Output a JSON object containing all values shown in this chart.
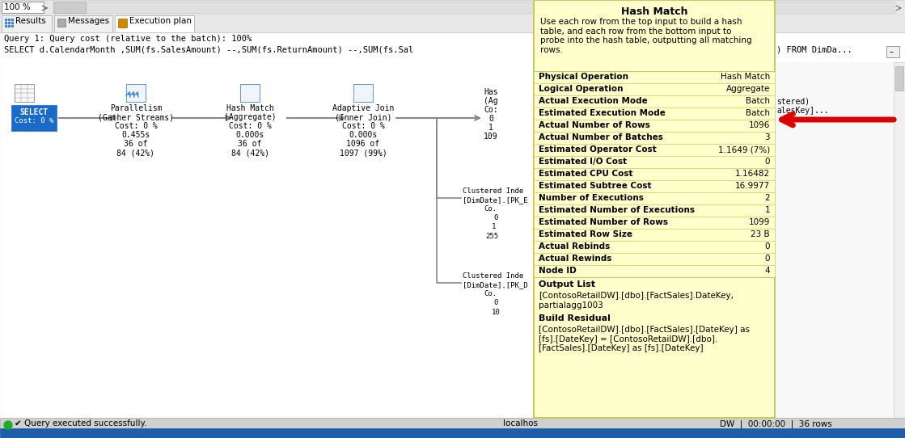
{
  "bg_color": "#f0f0f0",
  "tooltip_bg": "#ffffcc",
  "tooltip_border": "#c8c864",
  "tooltip_title": "Hash Match",
  "tooltip_desc": "Use each row from the top input to build a hash\ntable, and each row from the bottom input to\nprobe into the hash table, outputting all matching\nrows.",
  "table_rows": [
    [
      "Physical Operation",
      "Hash Match"
    ],
    [
      "Logical Operation",
      "Aggregate"
    ],
    [
      "Actual Execution Mode",
      "Batch"
    ],
    [
      "Estimated Execution Mode",
      "Batch"
    ],
    [
      "Actual Number of Rows",
      "1096"
    ],
    [
      "Actual Number of Batches",
      "3"
    ],
    [
      "Estimated Operator Cost",
      "1.1649 (7%)"
    ],
    [
      "Estimated I/O Cost",
      "0"
    ],
    [
      "Estimated CPU Cost",
      "1.16482"
    ],
    [
      "Estimated Subtree Cost",
      "16.9977"
    ],
    [
      "Number of Executions",
      "2"
    ],
    [
      "Estimated Number of Executions",
      "1"
    ],
    [
      "Estimated Number of Rows",
      "1099"
    ],
    [
      "Estimated Row Size",
      "23 B"
    ],
    [
      "Actual Rebinds",
      "0"
    ],
    [
      "Actual Rewinds",
      "0"
    ],
    [
      "Node ID",
      "4"
    ]
  ],
  "output_list_label": "Output List",
  "output_list_text": "[ContosoRetailDW].[dbo].[FactSales].DateKey,\npartialagg1003",
  "build_residual_label": "Build Residual",
  "build_residual_text": "[ContosoRetailDW].[dbo].[FactSales].[DateKey] as\n[fs].[DateKey] = [ContosoRetailDW].[dbo].\n[FactSales].[DateKey] as [fs].[DateKey]",
  "statusbar_text_left": "✔ Query executed successfully.",
  "statusbar_text_right": "localhos",
  "statusbar_right2": "DW  |  00:00:00  |  36 rows",
  "query_line1": "Query 1: Query cost (relative to the batch): 100%",
  "query_line2": "SELECT d.CalendarMonth ,SUM(fs.SalesAmount) --,SUM(fs.ReturnAmount) --,SUM(fs.Sal"
}
